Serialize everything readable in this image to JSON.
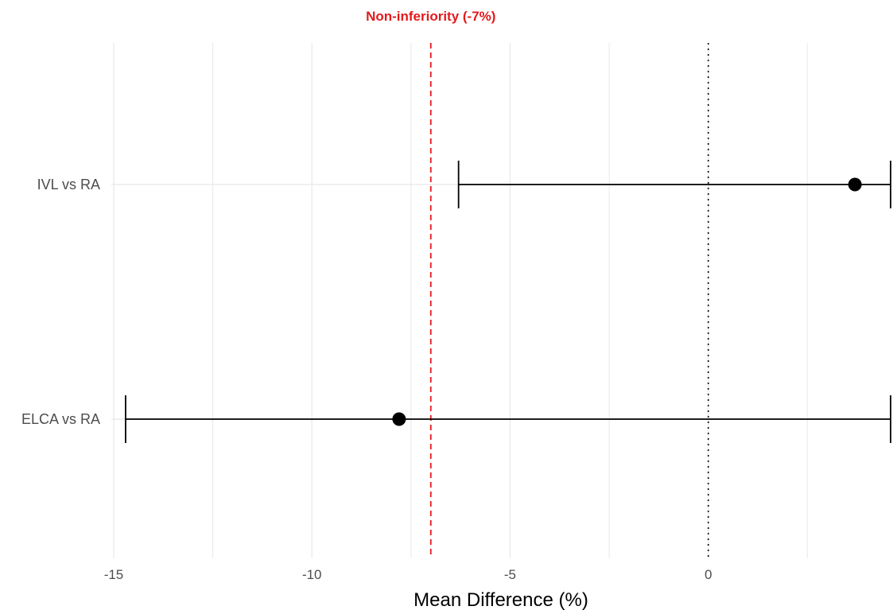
{
  "chart_data": {
    "type": "scatter",
    "subtype": "forest-plot",
    "title": "",
    "xlabel": "Mean Difference (%)",
    "ylabel": "",
    "xlim": [
      -15.06,
      4.6
    ],
    "x_ticks": [
      -15,
      -10,
      -5,
      0
    ],
    "x_tick_labels": [
      "-15",
      "-10",
      "-5",
      "0"
    ],
    "categories": [
      "IVL vs RA",
      "ELCA vs RA"
    ],
    "series": [
      {
        "values": [
          {
            "category": "IVL vs RA",
            "estimate": 3.7,
            "ci_low": -6.3,
            "ci_high": 4.6
          },
          {
            "category": "ELCA vs RA",
            "estimate": -7.8,
            "ci_low": -14.7,
            "ci_high": 4.6
          }
        ],
        "color": "#000000"
      }
    ],
    "reference_lines": [
      {
        "x": -7,
        "style": "dashed",
        "color": "#e41a1c",
        "label": "Non-inferiority (-7%)"
      },
      {
        "x": 0,
        "style": "dotted",
        "color": "#000000",
        "label": ""
      }
    ],
    "grid": true,
    "legend": "none",
    "colors": {
      "grid": "#ebebeb",
      "axis_text": "#4d4d4d",
      "point": "#000000",
      "noninferiority": "#e41a1c"
    }
  }
}
